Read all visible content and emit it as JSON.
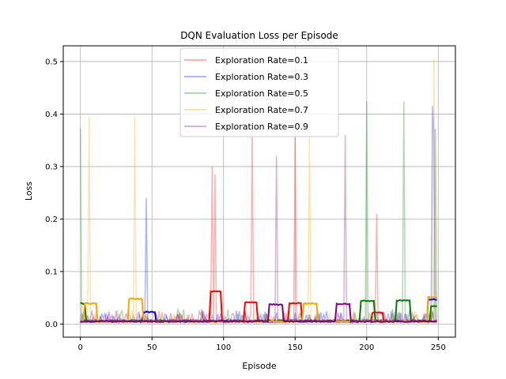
{
  "chart_data": {
    "type": "line",
    "title": "DQN Evaluation Loss per Episode",
    "xlabel": "Episode",
    "ylabel": "Loss",
    "xlim": [
      -12,
      262
    ],
    "ylim": [
      -0.025,
      0.53
    ],
    "xticks": [
      0,
      50,
      100,
      150,
      200,
      250
    ],
    "yticks": [
      0.0,
      0.1,
      0.2,
      0.3,
      0.4,
      0.5
    ],
    "grid": true,
    "legend_position": "upper-center",
    "series": [
      {
        "name": "Exploration Rate=0.1",
        "color": "#ff0000",
        "raw_baseline": 0.005,
        "raw_spikes": [
          [
            3,
            0.02
          ],
          [
            22,
            0.018
          ],
          [
            55,
            0.025
          ],
          [
            78,
            0.02
          ],
          [
            92,
            0.3
          ],
          [
            94,
            0.285
          ],
          [
            120,
            0.37
          ],
          [
            130,
            0.02
          ],
          [
            150,
            0.355
          ],
          [
            165,
            0.02
          ],
          [
            207,
            0.21
          ],
          [
            240,
            0.02
          ]
        ],
        "smooth_baseline": 0.004,
        "smooth_plateaus": [
          [
            91,
            98,
            0.063
          ],
          [
            115,
            123,
            0.042
          ],
          [
            146,
            154,
            0.041
          ],
          [
            204,
            211,
            0.023
          ]
        ]
      },
      {
        "name": "Exploration Rate=0.3",
        "color": "#0000ff",
        "raw_baseline": 0.006,
        "raw_spikes": [
          [
            15,
            0.02
          ],
          [
            46,
            0.24
          ],
          [
            60,
            0.015
          ],
          [
            98,
            0.02
          ],
          [
            170,
            0.018
          ],
          [
            246,
            0.415
          ],
          [
            247,
            0.36
          ]
        ],
        "smooth_baseline": 0.004,
        "smooth_plateaus": [
          [
            44,
            52,
            0.024
          ],
          [
            243,
            249,
            0.048
          ]
        ]
      },
      {
        "name": "Exploration Rate=0.5",
        "color": "#008000",
        "raw_baseline": 0.006,
        "raw_spikes": [
          [
            0,
            0.373
          ],
          [
            28,
            0.02
          ],
          [
            72,
            0.028
          ],
          [
            85,
            0.025
          ],
          [
            110,
            0.02
          ],
          [
            160,
            0.018
          ],
          [
            200,
            0.424
          ],
          [
            226,
            0.424
          ],
          [
            248,
            0.372
          ]
        ],
        "smooth_baseline": 0.005,
        "smooth_plateaus": [
          [
            0,
            3,
            0.04
          ],
          [
            196,
            205,
            0.045
          ],
          [
            221,
            230,
            0.046
          ],
          [
            245,
            249,
            0.035
          ]
        ]
      },
      {
        "name": "Exploration Rate=0.7",
        "color": "#ffa500",
        "raw_baseline": 0.005,
        "raw_spikes": [
          [
            6,
            0.395
          ],
          [
            38,
            0.395
          ],
          [
            65,
            0.02
          ],
          [
            90,
            0.02
          ],
          [
            160,
            0.36
          ],
          [
            180,
            0.02
          ],
          [
            247,
            0.505
          ]
        ],
        "smooth_baseline": 0.004,
        "smooth_plateaus": [
          [
            3,
            11,
            0.04
          ],
          [
            34,
            43,
            0.049
          ],
          [
            156,
            165,
            0.04
          ],
          [
            243,
            249,
            0.052
          ]
        ]
      },
      {
        "name": "Exploration Rate=0.9",
        "color": "#800080",
        "raw_baseline": 0.006,
        "raw_spikes": [
          [
            18,
            0.02
          ],
          [
            40,
            0.02
          ],
          [
            70,
            0.02
          ],
          [
            137,
            0.32
          ],
          [
            185,
            0.36
          ],
          [
            215,
            0.02
          ],
          [
            246,
            0.025
          ]
        ],
        "smooth_baseline": 0.004,
        "smooth_plateaus": [
          [
            132,
            141,
            0.038
          ],
          [
            179,
            188,
            0.039
          ]
        ]
      }
    ]
  }
}
